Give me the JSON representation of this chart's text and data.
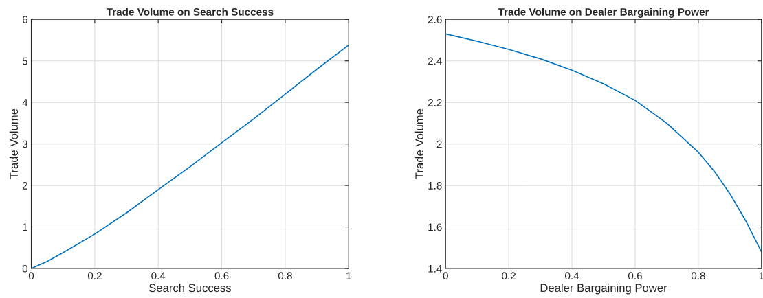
{
  "chart_data": [
    {
      "type": "line",
      "title": "Trade Volume on Search Success",
      "xlabel": "Search Success",
      "ylabel": "Trade Volume",
      "series": [
        {
          "color": "#0072bd",
          "x": [
            0,
            0.05,
            0.1,
            0.2,
            0.3,
            0.4,
            0.5,
            0.6,
            0.7,
            0.8,
            0.9,
            1.0
          ],
          "values": [
            0,
            0.17,
            0.38,
            0.83,
            1.34,
            1.9,
            2.45,
            3.03,
            3.6,
            4.2,
            4.8,
            5.38
          ]
        }
      ],
      "xlim": [
        0,
        1
      ],
      "ylim": [
        0,
        6
      ],
      "xticks": [
        0,
        0.2,
        0.4,
        0.6,
        0.8,
        1
      ],
      "yticks": [
        0,
        1,
        2,
        3,
        4,
        5,
        6
      ],
      "grid": true
    },
    {
      "type": "line",
      "title": "Trade Volume on Dealer Bargaining Power",
      "xlabel": "Dealer Bargaining Power",
      "ylabel": "Trade Volume",
      "series": [
        {
          "color": "#0072bd",
          "x": [
            0,
            0.1,
            0.2,
            0.3,
            0.4,
            0.5,
            0.6,
            0.7,
            0.8,
            0.85,
            0.9,
            0.95,
            1.0
          ],
          "values": [
            2.53,
            2.495,
            2.455,
            2.41,
            2.355,
            2.29,
            2.21,
            2.1,
            1.96,
            1.87,
            1.76,
            1.63,
            1.48
          ]
        }
      ],
      "xlim": [
        0,
        1
      ],
      "ylim": [
        1.4,
        2.6
      ],
      "xticks": [
        0,
        0.2,
        0.4,
        0.6,
        0.8,
        1
      ],
      "yticks": [
        1.4,
        1.6,
        1.8,
        2,
        2.2,
        2.4,
        2.6
      ],
      "grid": true
    }
  ]
}
